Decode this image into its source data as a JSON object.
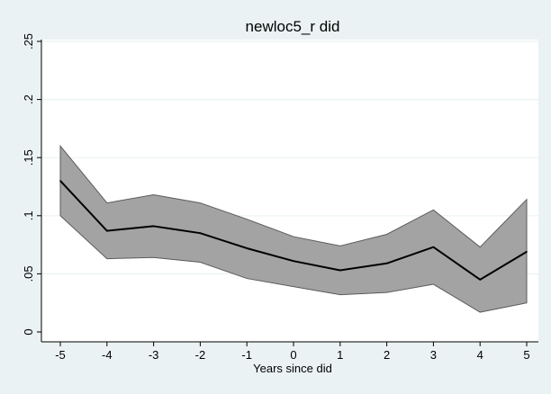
{
  "chart_data": {
    "type": "line",
    "title": "newloc5_r did",
    "xlabel": "Years since did",
    "ylabel": "",
    "xlim": [
      -5,
      5
    ],
    "ylim": [
      0,
      0.25
    ],
    "x": [
      -5,
      -4,
      -3,
      -2,
      -1,
      0,
      1,
      2,
      3,
      4,
      5
    ],
    "x_tick_labels": [
      "-5",
      "-4",
      "-3",
      "-2",
      "-1",
      "0",
      "1",
      "2",
      "3",
      "4",
      "5"
    ],
    "y_ticks": [
      0,
      0.05,
      0.1,
      0.15,
      0.2,
      0.25
    ],
    "y_tick_labels": [
      "0",
      ".05",
      ".1",
      ".15",
      ".2",
      ".25"
    ],
    "grid": true,
    "series": [
      {
        "values": [
          0.13,
          0.087,
          0.091,
          0.085,
          0.072,
          0.061,
          0.053,
          0.059,
          0.073,
          0.045,
          0.069
        ]
      }
    ],
    "band": {
      "upper": [
        0.16,
        0.111,
        0.118,
        0.111,
        0.097,
        0.082,
        0.074,
        0.084,
        0.105,
        0.073,
        0.114
      ],
      "lower": [
        0.1,
        0.063,
        0.064,
        0.06,
        0.046,
        0.039,
        0.032,
        0.034,
        0.041,
        0.017,
        0.025
      ]
    },
    "colors": {
      "background": "#eaf2f3",
      "plot_bg": "#ffffff",
      "band_fill": "#a3a3a3",
      "band_edge": "#5b5b5b",
      "line": "#000000",
      "grid": "#eaf2f3"
    }
  }
}
